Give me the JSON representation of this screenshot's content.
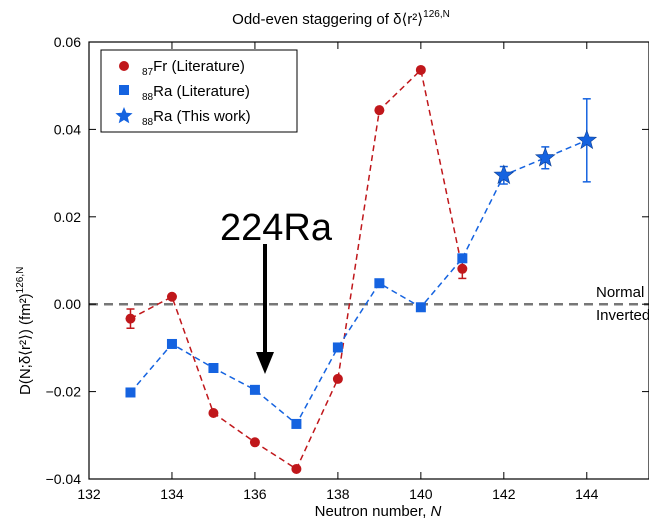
{
  "chart_data": {
    "type": "scatter",
    "title": "Odd-even staggering of δ⟨r²⟩",
    "title_superscript": "126,N",
    "xlabel": "Neutron number, ",
    "xlabel_var": "N",
    "ylabel": "D(N;δ⟨r²⟩) (fm²)",
    "ylabel_superscript": "126,N",
    "xlim": [
      132,
      145.5
    ],
    "ylim": [
      -0.04,
      0.06
    ],
    "xticks": [
      "132",
      "134",
      "136",
      "138",
      "140",
      "142",
      "144"
    ],
    "yticks": [
      "−0.04",
      "−0.02",
      "0.00",
      "0.02",
      "0.04",
      "0.06"
    ],
    "grid": false,
    "legend_position": "top-left",
    "reference_line": {
      "y": 0,
      "above_label": "Normal",
      "below_label": "Inverted"
    },
    "annotation": {
      "text": "224Ra",
      "points_to": {
        "x": 136,
        "y": -0.0195
      }
    },
    "series": [
      {
        "name": "Fr (Literature)",
        "subscript": "87",
        "marker": "circle",
        "color": "#c0171b",
        "line": "dashed",
        "x": [
          133,
          134,
          135,
          136,
          137,
          138,
          139,
          140,
          141
        ],
        "y": [
          -0.0033,
          0.0017,
          -0.0249,
          -0.0316,
          -0.0377,
          -0.0171,
          0.0444,
          0.0536,
          0.0081
        ],
        "yerr": [
          0.0022,
          0,
          0,
          0,
          0,
          0,
          0,
          0,
          0.0022
        ]
      },
      {
        "name": "Ra (Literature)",
        "subscript": "88",
        "marker": "square",
        "color": "#1563e0",
        "line": "dashed",
        "x": [
          133,
          134,
          135,
          136,
          137,
          138,
          139,
          140,
          141
        ],
        "y": [
          -0.0202,
          -0.0091,
          -0.0146,
          -0.0196,
          -0.0274,
          -0.0099,
          0.0048,
          -0.0007,
          0.0105
        ],
        "yerr": [
          0,
          0,
          0,
          0,
          0,
          0,
          0,
          0,
          0
        ]
      },
      {
        "name": "Ra (This work)",
        "subscript": "88",
        "marker": "star",
        "color": "#1563e0",
        "line": "dashed",
        "x": [
          141,
          142,
          143,
          144
        ],
        "y": [
          0.0105,
          0.0295,
          0.0335,
          0.0375
        ],
        "yerr": [
          0,
          0.002,
          0.0025,
          0.0095
        ],
        "connect_only_first": true
      }
    ]
  }
}
